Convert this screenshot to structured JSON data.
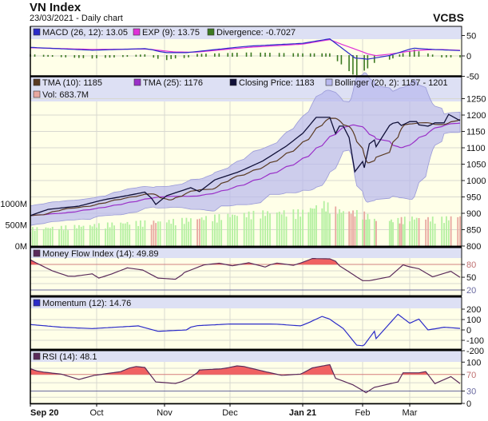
{
  "header": {
    "title": "VN Index",
    "subtitle": "23/03/2021 - Daily chart",
    "brand": "VCBS"
  },
  "colors": {
    "panel_bg": "#ffffe8",
    "legend_bg": "#dde0f4",
    "macd": "#2a2ac8",
    "exp": "#e030d8",
    "divergence": "#3d7a22",
    "tma10": "#5a3a22",
    "tma25": "#9a30c8",
    "close": "#101038",
    "bollinger": "#b8b8ee",
    "vol_up": "#b4f0a0",
    "vol_down": "#e8a8a0",
    "mfi": "#5a2a5a",
    "momentum": "#2a2ac8",
    "rsi": "#5a2a5a",
    "overbought_fill": "#f06262",
    "threshold_high": "#d08080",
    "threshold_low": "#6a6aa0"
  },
  "macd_panel": {
    "legend": [
      {
        "label": "MACD (26, 12): 13.05",
        "color": "#2a2ac8"
      },
      {
        "label": "EXP (9): 13.75",
        "color": "#e030d8"
      },
      {
        "label": "Divergence: -0.7027",
        "color": "#3d7a22"
      }
    ],
    "ticks": [
      "50",
      "0",
      "-50"
    ]
  },
  "price_panel": {
    "legend": [
      {
        "label": "TMA (10): 1185",
        "color": "#5a3a22"
      },
      {
        "label": "TMA (25): 1176",
        "color": "#9a30c8"
      },
      {
        "label": "Closing Price: 1183",
        "color": "#101038"
      },
      {
        "label": "Bollinger (20, 2): 1157 - 1201",
        "color": "#b8b8ee"
      },
      {
        "label": "Vol: 683.7M",
        "color": "#e8a8a0"
      }
    ],
    "price_ticks": [
      "1250",
      "1200",
      "1150",
      "1100",
      "1050",
      "1000",
      "950",
      "900",
      "850",
      "800"
    ],
    "volume_ticks": [
      "1000M",
      "500M",
      "0M"
    ]
  },
  "mfi_panel": {
    "legend": [
      {
        "label": "Money Flow Index (14): 49.89",
        "color": "#5a2a5a"
      }
    ],
    "ticks": [
      "80",
      "50",
      "20"
    ]
  },
  "momentum_panel": {
    "legend": [
      {
        "label": "Momentum (12): 14.76",
        "color": "#2a2ac8"
      }
    ],
    "ticks": [
      "200",
      "100",
      "0",
      "-100",
      "-200"
    ]
  },
  "rsi_panel": {
    "legend": [
      {
        "label": "RSI (14): 48.1",
        "color": "#5a2a5a"
      }
    ],
    "ticks": [
      "100",
      "70",
      "30",
      "0"
    ]
  },
  "x_axis": {
    "labels": [
      {
        "label": "Sep 20",
        "bold": true
      },
      {
        "label": "Oct",
        "bold": false
      },
      {
        "label": "Nov",
        "bold": false
      },
      {
        "label": "Dec",
        "bold": false
      },
      {
        "label": "Jan 21",
        "bold": true
      },
      {
        "label": "Feb",
        "bold": false
      },
      {
        "label": "Mar",
        "bold": false
      }
    ]
  },
  "chart_data": {
    "type": "line",
    "x_range": [
      "2020-09-01",
      "2021-03-23"
    ],
    "grid": true,
    "close": [
      [
        "2020-09-01",
        893
      ],
      [
        "2020-09-09",
        912
      ],
      [
        "2020-09-23",
        922
      ],
      [
        "2020-10-04",
        941
      ],
      [
        "2020-10-15",
        954
      ],
      [
        "2020-10-24",
        966
      ],
      [
        "2020-10-28",
        927
      ],
      [
        "2020-11-02",
        954
      ],
      [
        "2020-11-13",
        978
      ],
      [
        "2020-11-17",
        966
      ],
      [
        "2020-11-24",
        1002
      ],
      [
        "2020-12-05",
        1027
      ],
      [
        "2020-12-15",
        1060
      ],
      [
        "2020-12-25",
        1105
      ],
      [
        "2021-01-01",
        1144
      ],
      [
        "2021-01-08",
        1193
      ],
      [
        "2021-01-15",
        1193
      ],
      [
        "2021-01-17",
        1132
      ],
      [
        "2021-01-20",
        1166
      ],
      [
        "2021-01-24",
        1166
      ],
      [
        "2021-01-28",
        1027
      ],
      [
        "2021-02-01",
        1058
      ],
      [
        "2021-02-02",
        1039
      ],
      [
        "2021-02-05",
        1112
      ],
      [
        "2021-02-08",
        1124
      ],
      [
        "2021-02-10",
        1083
      ],
      [
        "2021-02-17",
        1168
      ],
      [
        "2021-02-19",
        1175
      ],
      [
        "2021-02-22",
        1178
      ],
      [
        "2021-02-24",
        1168
      ],
      [
        "2021-03-01",
        1180
      ],
      [
        "2021-03-04",
        1180
      ],
      [
        "2021-03-05",
        1170
      ],
      [
        "2021-03-09",
        1166
      ],
      [
        "2021-03-12",
        1176
      ],
      [
        "2021-03-16",
        1176
      ],
      [
        "2021-03-18",
        1202
      ],
      [
        "2021-03-23",
        1183
      ]
    ],
    "volume_millions": [
      [
        "2020-09-01",
        400
      ],
      [
        "2020-09-15",
        430
      ],
      [
        "2020-10-01",
        480
      ],
      [
        "2020-10-15",
        530
      ],
      [
        "2020-11-01",
        560
      ],
      [
        "2020-11-15",
        620
      ],
      [
        "2020-12-01",
        700
      ],
      [
        "2020-12-15",
        760
      ],
      [
        "2021-01-01",
        780
      ],
      [
        "2021-01-12",
        960
      ],
      [
        "2021-01-20",
        800
      ],
      [
        "2021-02-01",
        750
      ],
      [
        "2021-02-10",
        560
      ],
      [
        "2021-02-22",
        600
      ],
      [
        "2021-03-01",
        640
      ],
      [
        "2021-03-15",
        620
      ],
      [
        "2021-03-23",
        683.7
      ]
    ],
    "macd": [
      [
        "2020-09-01",
        21
      ],
      [
        "2020-09-29",
        14
      ],
      [
        "2020-10-24",
        18
      ],
      [
        "2020-11-01",
        8
      ],
      [
        "2020-11-11",
        8
      ],
      [
        "2020-12-09",
        24
      ],
      [
        "2021-01-01",
        31
      ],
      [
        "2021-01-15",
        42
      ],
      [
        "2021-01-28",
        -5
      ],
      [
        "2021-02-04",
        -8
      ],
      [
        "2021-02-17",
        1
      ],
      [
        "2021-03-03",
        19
      ],
      [
        "2021-03-11",
        16
      ],
      [
        "2021-03-23",
        13.05
      ]
    ],
    "exp": [
      [
        "2020-09-01",
        20
      ],
      [
        "2020-09-29",
        16
      ],
      [
        "2020-10-24",
        17
      ],
      [
        "2020-11-05",
        10
      ],
      [
        "2020-11-15",
        9
      ],
      [
        "2020-12-09",
        21
      ],
      [
        "2021-01-01",
        29
      ],
      [
        "2021-01-15",
        40
      ],
      [
        "2021-01-22",
        27
      ],
      [
        "2021-02-04",
        5
      ],
      [
        "2021-02-10",
        0
      ],
      [
        "2021-03-05",
        14
      ],
      [
        "2021-03-14",
        16
      ],
      [
        "2021-03-23",
        13.75
      ]
    ],
    "mfi": [
      [
        "2020-09-01",
        91
      ],
      [
        "2020-09-05",
        80
      ],
      [
        "2020-09-11",
        65
      ],
      [
        "2020-09-19",
        51
      ],
      [
        "2020-09-29",
        58
      ],
      [
        "2020-10-02",
        48
      ],
      [
        "2020-10-08",
        58
      ],
      [
        "2020-10-15",
        72
      ],
      [
        "2020-10-22",
        67
      ],
      [
        "2020-10-29",
        48
      ],
      [
        "2020-11-07",
        45
      ],
      [
        "2020-11-10",
        61
      ],
      [
        "2020-11-19",
        79
      ],
      [
        "2020-11-26",
        83
      ],
      [
        "2020-12-02",
        77
      ],
      [
        "2020-12-09",
        84
      ],
      [
        "2020-12-16",
        74
      ],
      [
        "2020-12-20",
        84
      ],
      [
        "2020-12-28",
        78
      ],
      [
        "2021-01-06",
        94
      ],
      [
        "2021-01-17",
        93
      ],
      [
        "2021-01-20",
        77
      ],
      [
        "2021-02-01",
        42
      ],
      [
        "2021-02-05",
        42
      ],
      [
        "2021-02-17",
        51
      ],
      [
        "2021-02-25",
        79
      ],
      [
        "2021-03-05",
        70
      ],
      [
        "2021-03-11",
        51
      ],
      [
        "2021-03-19",
        64
      ],
      [
        "2021-03-23",
        49.89
      ]
    ],
    "momentum": [
      [
        "2020-09-01",
        52
      ],
      [
        "2020-09-15",
        26
      ],
      [
        "2020-09-29",
        13
      ],
      [
        "2020-10-20",
        39
      ],
      [
        "2020-10-29",
        -13
      ],
      [
        "2020-11-11",
        0
      ],
      [
        "2020-11-14",
        39
      ],
      [
        "2020-12-01",
        57
      ],
      [
        "2020-12-20",
        57
      ],
      [
        "2020-12-31",
        39
      ],
      [
        "2021-01-05",
        78
      ],
      [
        "2021-01-11",
        130
      ],
      [
        "2021-01-15",
        104
      ],
      [
        "2021-01-22",
        13
      ],
      [
        "2021-01-30",
        -170
      ],
      [
        "2021-02-02",
        -144
      ],
      [
        "2021-02-08",
        -13
      ],
      [
        "2021-02-09",
        -84
      ],
      [
        "2021-02-22",
        151
      ],
      [
        "2021-03-01",
        65
      ],
      [
        "2021-03-05",
        104
      ],
      [
        "2021-03-09",
        0
      ],
      [
        "2021-03-16",
        26
      ],
      [
        "2021-03-23",
        14.76
      ]
    ],
    "rsi": [
      [
        "2020-09-01",
        84
      ],
      [
        "2020-09-05",
        77
      ],
      [
        "2020-09-15",
        71
      ],
      [
        "2020-09-23",
        58
      ],
      [
        "2020-09-30",
        68
      ],
      [
        "2020-10-12",
        77
      ],
      [
        "2020-10-18",
        90
      ],
      [
        "2020-10-23",
        87
      ],
      [
        "2020-10-28",
        52
      ],
      [
        "2020-11-07",
        48
      ],
      [
        "2020-11-15",
        68
      ],
      [
        "2020-11-17",
        81
      ],
      [
        "2020-11-28",
        84
      ],
      [
        "2020-12-05",
        92
      ],
      [
        "2020-12-16",
        77
      ],
      [
        "2020-12-23",
        68
      ],
      [
        "2020-12-31",
        71
      ],
      [
        "2021-01-06",
        86
      ],
      [
        "2021-01-15",
        94
      ],
      [
        "2021-01-18",
        61
      ],
      [
        "2021-01-27",
        45
      ],
      [
        "2021-02-03",
        26
      ],
      [
        "2021-02-08",
        39
      ],
      [
        "2021-02-22",
        52
      ],
      [
        "2021-02-25",
        74
      ],
      [
        "2021-03-05",
        74
      ],
      [
        "2021-03-08",
        77
      ],
      [
        "2021-03-12",
        48
      ],
      [
        "2021-03-19",
        65
      ],
      [
        "2021-03-23",
        48.1
      ]
    ],
    "indicator_params": {
      "tma_short": 10,
      "tma_long": 25,
      "bollinger_period": 20,
      "bollinger_k": 2
    },
    "mfi_levels": [
      80,
      50,
      20
    ],
    "rsi_levels": [
      70,
      30
    ],
    "price_range": [
      800,
      1250
    ],
    "volume_range_millions": [
      0,
      1000
    ],
    "macd_range": [
      -50,
      50
    ],
    "momentum_range": [
      -200,
      200
    ],
    "rsi_range": [
      0,
      100
    ]
  }
}
